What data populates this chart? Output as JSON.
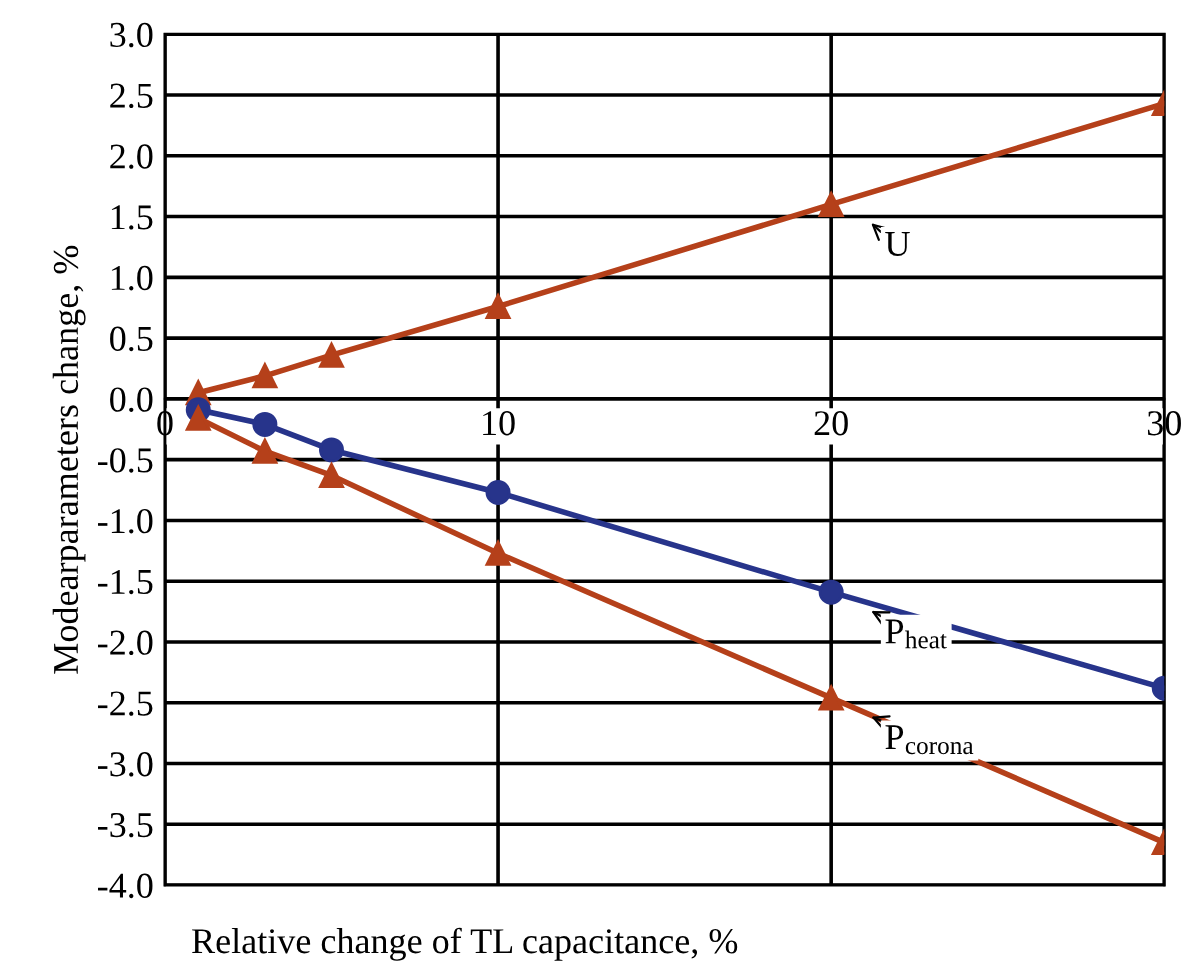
{
  "chart_data": {
    "type": "line",
    "xlabel": "Relative change of TL capacitance, %",
    "ylabel": "Modearparameters change, %",
    "x": [
      1,
      3,
      5,
      10,
      20,
      30
    ],
    "series": [
      {
        "name": "U",
        "color": "#b5401a",
        "marker": "triangle",
        "values": [
          0.05,
          0.19,
          0.36,
          0.76,
          1.6,
          2.43
        ]
      },
      {
        "name": "P$_{heat}$",
        "color": "#27348b",
        "marker": "circle",
        "values": [
          -0.09,
          -0.21,
          -0.42,
          -0.77,
          -1.59,
          -2.38
        ]
      },
      {
        "name": "P$_{corona}$",
        "color": "#b5401a",
        "marker": "triangle",
        "values": [
          -0.16,
          -0.43,
          -0.63,
          -1.27,
          -2.46,
          -3.65
        ]
      }
    ],
    "xlim": [
      0,
      30
    ],
    "xticks": [
      0,
      10,
      20,
      30
    ],
    "ylim": [
      -4.0,
      3.0
    ],
    "yticks": [
      {
        "value": -4.0,
        "label": "-4.0"
      },
      {
        "value": -3.5,
        "label": "-3.5"
      },
      {
        "value": -3.0,
        "label": "-3.0"
      },
      {
        "value": -2.5,
        "label": "-2.5"
      },
      {
        "value": -2.0,
        "label": "-2.0"
      },
      {
        "value": -1.5,
        "label": "-1.5"
      },
      {
        "value": -1.0,
        "label": "-1.0"
      },
      {
        "value": -0.5,
        "label": "-0.5"
      },
      {
        "value": 0.0,
        "label": "0.0"
      },
      {
        "value": 0.5,
        "label": "0.5"
      },
      {
        "value": 1.0,
        "label": "1.0"
      },
      {
        "value": 1.5,
        "label": "1.5"
      },
      {
        "value": 2.0,
        "label": "2.0"
      },
      {
        "value": 2.5,
        "label": "2.5"
      },
      {
        "value": 3.0,
        "label": "3.0"
      }
    ],
    "grid": true,
    "legend": false,
    "line_style": "solid"
  }
}
